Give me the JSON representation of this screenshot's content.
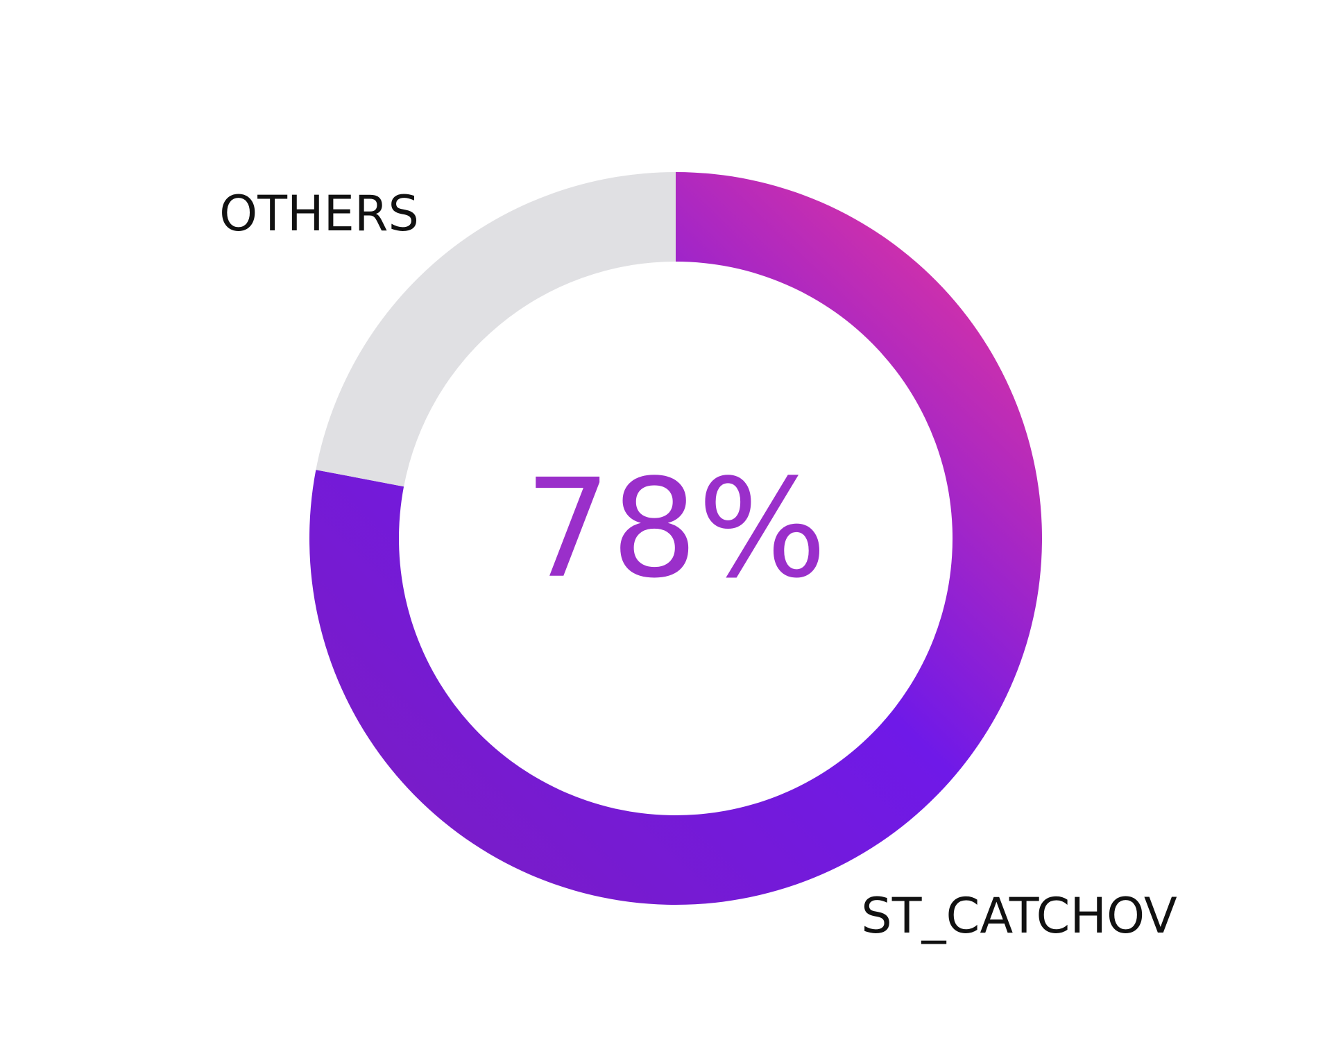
{
  "chart_data": {
    "type": "donut",
    "categories": [
      "ST_CATCHOV",
      "OTHERS"
    ],
    "values": [
      78,
      22
    ],
    "value_labels": [
      "78%",
      null
    ],
    "colors": [
      "#7a1ad8",
      "#e0e0e3"
    ]
  }
}
